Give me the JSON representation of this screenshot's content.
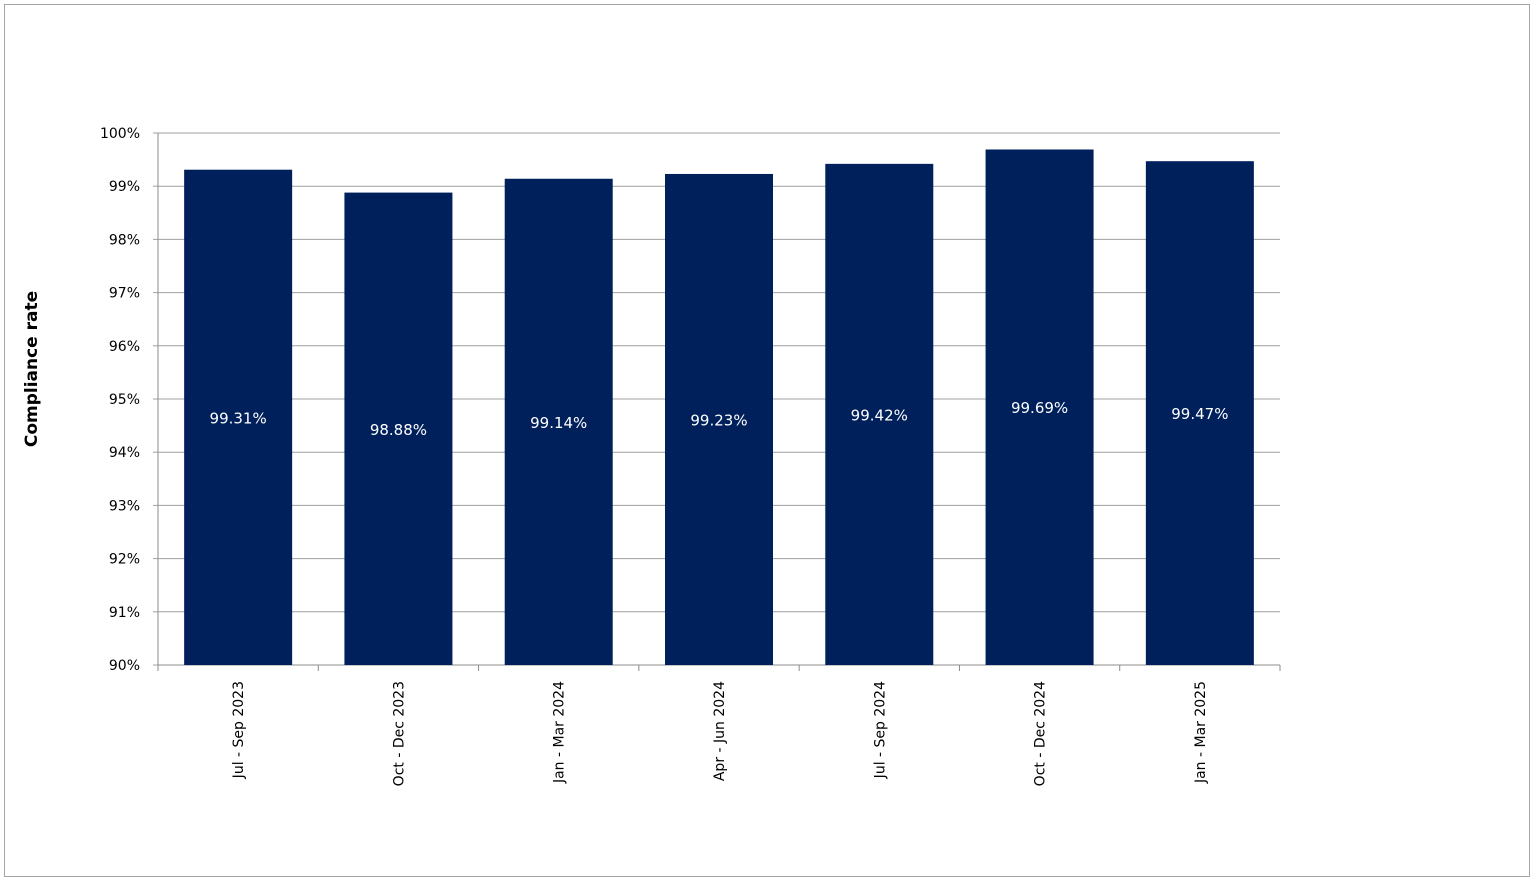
{
  "chart_data": {
    "type": "bar",
    "title": "",
    "xlabel": "",
    "ylabel": "Compliance rate",
    "categories": [
      "Jul - Sep 2023",
      "Oct - Dec 2023",
      "Jan - Mar 2024",
      "Apr - Jun 2024",
      "Jul - Sep 2024",
      "Oct - Dec 2024",
      "Jan - Mar 2025"
    ],
    "values": [
      99.31,
      98.88,
      99.14,
      99.23,
      99.42,
      99.69,
      99.47
    ],
    "data_labels": [
      "99.31%",
      "98.88%",
      "99.14%",
      "99.23%",
      "99.42%",
      "99.69%",
      "99.47%"
    ],
    "ylim": [
      90,
      100
    ],
    "yticks": [
      90,
      91,
      92,
      93,
      94,
      95,
      96,
      97,
      98,
      99,
      100
    ],
    "ytick_labels": [
      "90%",
      "91%",
      "92%",
      "93%",
      "94%",
      "95%",
      "96%",
      "97%",
      "98%",
      "99%",
      "100%"
    ],
    "grid": true,
    "legend": "none",
    "colors": {
      "bar": "#00205b",
      "data_label": "#ffffff",
      "grid": "#a0a0a0"
    }
  }
}
